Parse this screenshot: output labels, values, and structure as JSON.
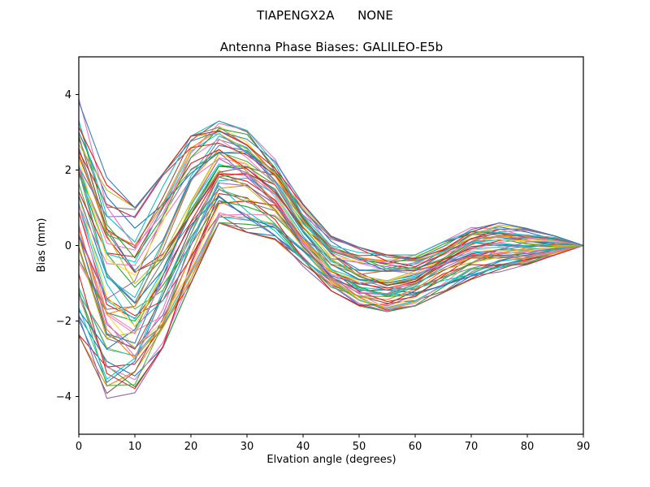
{
  "header": {
    "suptitle": "TIAPENGX2A      NONE",
    "title": "Antenna Phase Biases: GALILEO-E5b"
  },
  "chart_data": {
    "type": "line",
    "suptitle": "TIAPENGX2A      NONE",
    "title": "Antenna Phase Biases: GALILEO-E5b",
    "xlabel": "Elvation angle (degrees)",
    "ylabel": "Bias (mm)",
    "xlim": [
      0,
      90
    ],
    "ylim": [
      -5,
      5
    ],
    "grid": false,
    "legend": "none",
    "n_series": 60,
    "x": [
      0,
      5,
      10,
      15,
      20,
      25,
      30,
      35,
      40,
      45,
      50,
      55,
      60,
      65,
      70,
      75,
      80,
      85,
      90
    ],
    "envelope_upper": [
      3.9,
      1.8,
      1.0,
      1.9,
      2.9,
      3.3,
      3.05,
      2.3,
      1.1,
      0.25,
      -0.05,
      -0.25,
      -0.25,
      0.1,
      0.5,
      0.6,
      0.45,
      0.25,
      0.0
    ],
    "envelope_lower": [
      -2.4,
      -4.05,
      -3.9,
      -2.7,
      -1.0,
      0.6,
      0.35,
      0.15,
      -0.55,
      -1.2,
      -1.6,
      -1.75,
      -1.6,
      -1.25,
      -0.9,
      -0.7,
      -0.5,
      -0.25,
      0.0
    ],
    "series_note": "Approximately 60 overlapping multicolored bias curves spanning between envelope_lower and envelope_upper, all converging to 0 mm at 90 degrees",
    "palette": [
      "#1f77b4",
      "#ff7f0e",
      "#2ca02c",
      "#d62728",
      "#9467bd",
      "#8c564b",
      "#e377c2",
      "#7f7f7f",
      "#bcbd22",
      "#17becf",
      "#e41a1c",
      "#377eb8",
      "#4daf4a",
      "#f781bf",
      "#00ced1",
      "#ffd92f"
    ]
  },
  "axes": {
    "x_ticks": [
      0,
      10,
      20,
      30,
      40,
      50,
      60,
      70,
      80,
      90
    ],
    "y_ticks": [
      -4,
      -2,
      0,
      2,
      4
    ]
  }
}
